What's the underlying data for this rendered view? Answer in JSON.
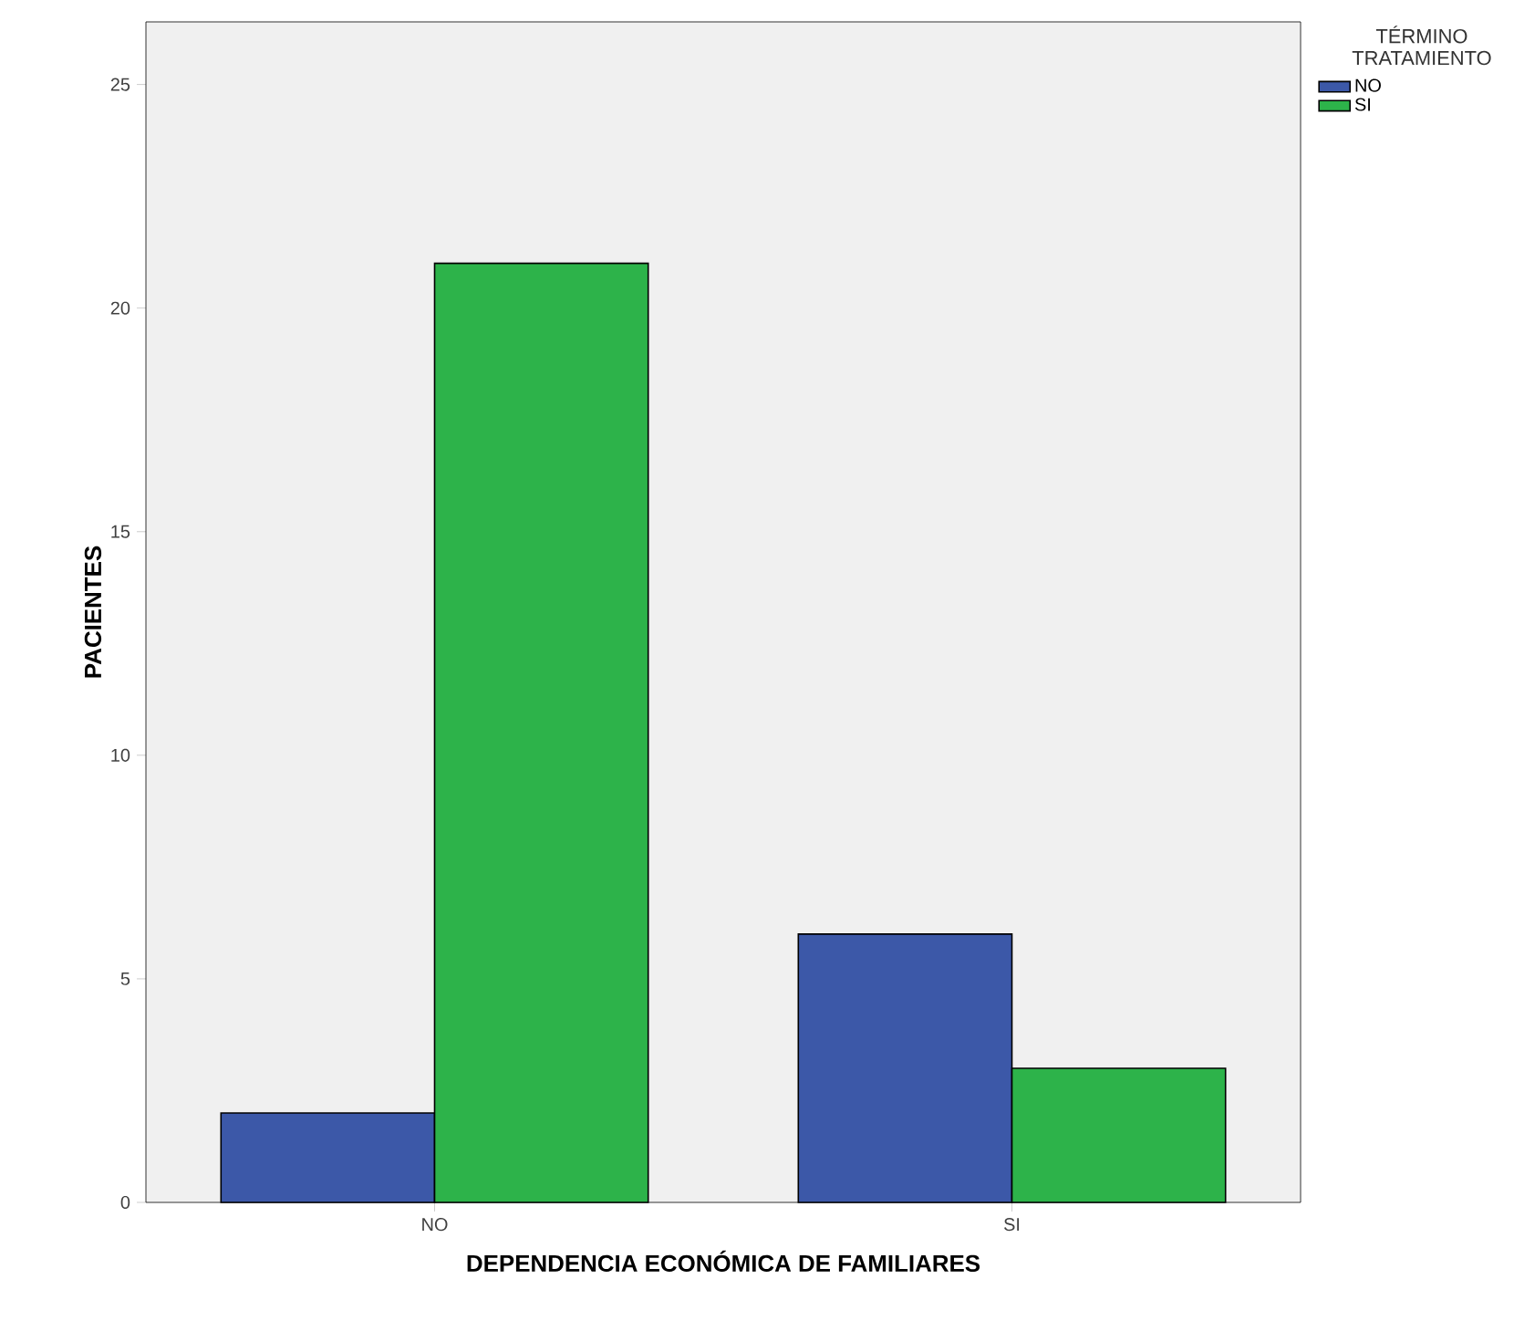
{
  "chart_data": {
    "type": "bar",
    "xlabel": "DEPENDENCIA ECONÓMICA DE FAMILIARES",
    "ylabel": "PACIENTES",
    "legend_title": "TÉRMINO TRATAMIENTO",
    "categories": [
      "NO",
      "SI"
    ],
    "series": [
      {
        "name": "NO",
        "color": "#3c58a8",
        "values": [
          2,
          6
        ]
      },
      {
        "name": "SI",
        "color": "#2db34a",
        "values": [
          21,
          3
        ]
      }
    ],
    "ylim": [
      0,
      26.4
    ],
    "yticks": [
      0,
      5,
      10,
      15,
      20,
      25
    ],
    "grid": false,
    "legend": "top right"
  }
}
